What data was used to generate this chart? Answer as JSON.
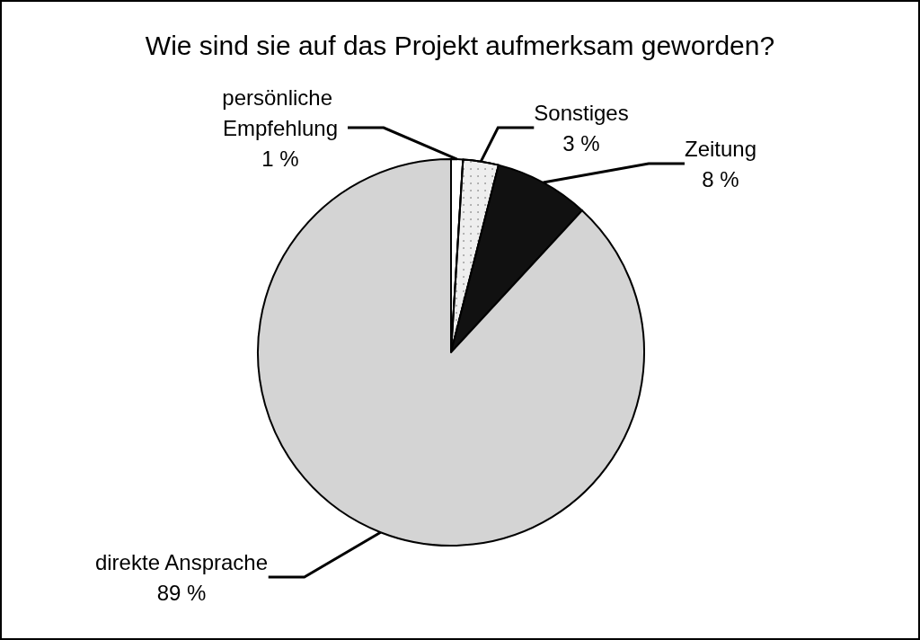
{
  "chart_data": {
    "type": "pie",
    "title": "Wie sind sie auf das Projekt aufmerksam geworden?",
    "categories": [
      "persönliche Empfehlung",
      "Sonstiges",
      "Zeitung",
      "direkte Ansprache"
    ],
    "values": [
      1,
      3,
      8,
      89
    ],
    "colors": [
      "#ffffff",
      "#eeeeee",
      "#111111",
      "#d4d4d4"
    ],
    "value_labels": [
      "1 %",
      "3 %",
      "8 %",
      "89 %"
    ],
    "legend": false
  }
}
